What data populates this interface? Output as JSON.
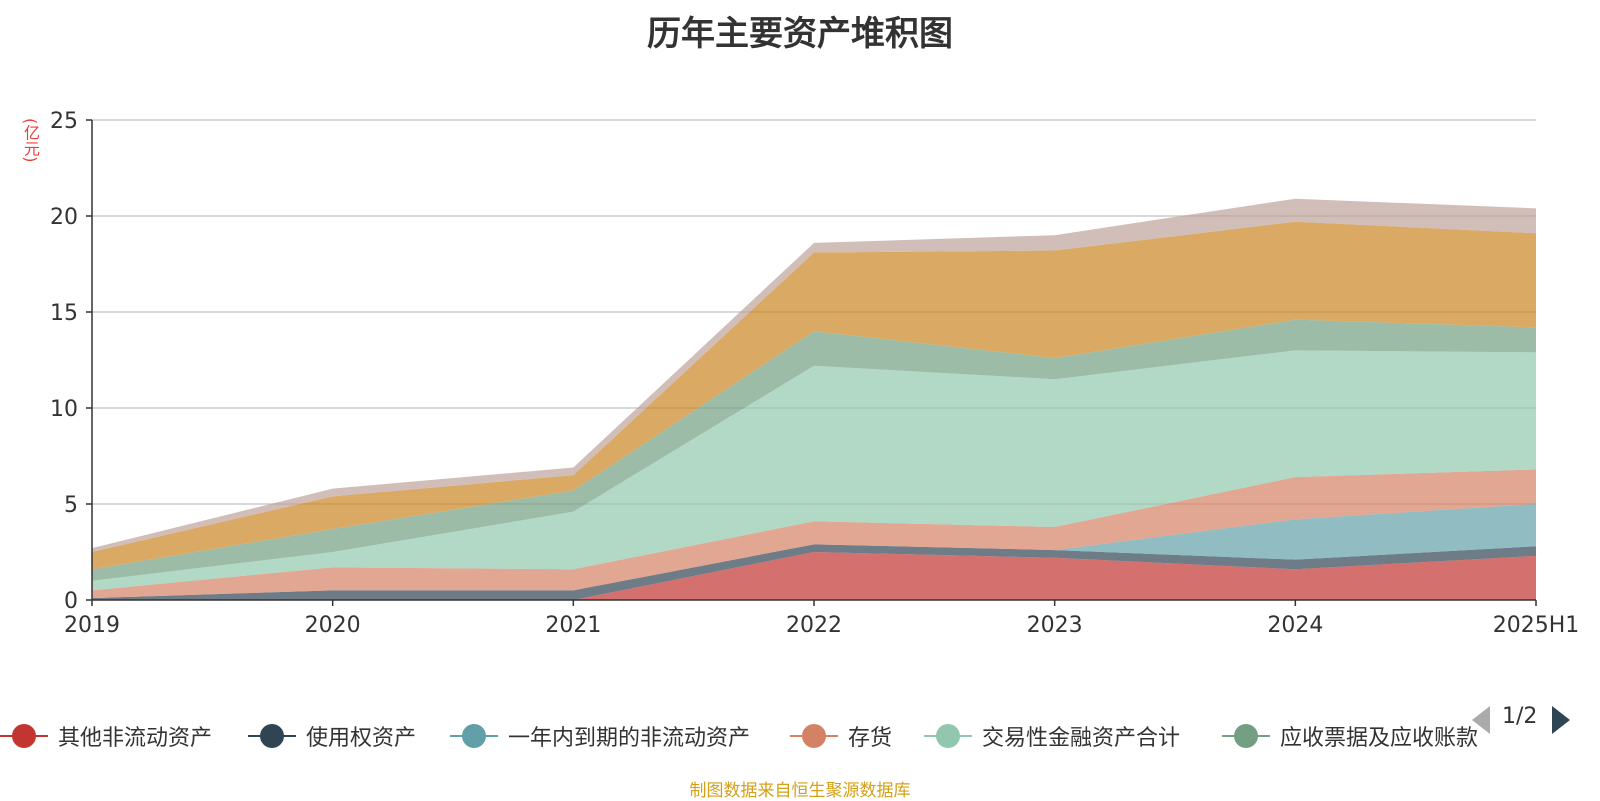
{
  "page": {
    "title": "历年主要资产堆积图",
    "source": "制图数据来自恒生聚源数据库"
  },
  "legend_pager": {
    "text": "1/2"
  },
  "chart_data": {
    "type": "area",
    "title": "历年主要资产堆积图",
    "ylabel": "(亿元)",
    "xlabel": "",
    "x": [
      "2019",
      "2020",
      "2021",
      "2022",
      "2023",
      "2024",
      "2025H1"
    ],
    "ylim": [
      0,
      25
    ],
    "yticks": [
      0,
      5,
      10,
      15,
      20,
      25
    ],
    "grid": true,
    "stacked": true,
    "legend_position": "bottom",
    "series": [
      {
        "name": "其他非流动资产",
        "color": "#c23531",
        "legend": true,
        "values": [
          0.0,
          0.0,
          0.0,
          2.5,
          2.2,
          1.6,
          2.3
        ]
      },
      {
        "name": "使用权资产",
        "color": "#2f4554",
        "legend": true,
        "values": [
          0.1,
          0.5,
          0.5,
          0.4,
          0.4,
          0.5,
          0.5
        ]
      },
      {
        "name": "一年内到期的非流动资产",
        "color": "#61a0a8",
        "legend": true,
        "values": [
          0.0,
          0.0,
          0.0,
          0.0,
          0.0,
          2.1,
          2.2
        ]
      },
      {
        "name": "存货",
        "color": "#d48265",
        "legend": true,
        "values": [
          0.4,
          1.2,
          1.1,
          1.2,
          1.2,
          2.2,
          1.8
        ]
      },
      {
        "name": "交易性金融资产合计",
        "color": "#91c7ae",
        "legend": true,
        "values": [
          0.5,
          0.8,
          3.0,
          8.1,
          7.7,
          6.6,
          6.1
        ]
      },
      {
        "name": "应收票据及应收账款",
        "color": "#749f83",
        "legend": true,
        "values": [
          0.6,
          1.2,
          1.1,
          1.8,
          1.1,
          1.6,
          1.3
        ]
      },
      {
        "name": "",
        "color": "#ca8622",
        "legend": false,
        "values": [
          0.9,
          1.7,
          0.8,
          4.1,
          5.6,
          5.1,
          4.9
        ]
      },
      {
        "name": "",
        "color": "#bda29a",
        "legend": false,
        "values": [
          0.2,
          0.4,
          0.4,
          0.5,
          0.8,
          1.2,
          1.3
        ]
      }
    ]
  }
}
